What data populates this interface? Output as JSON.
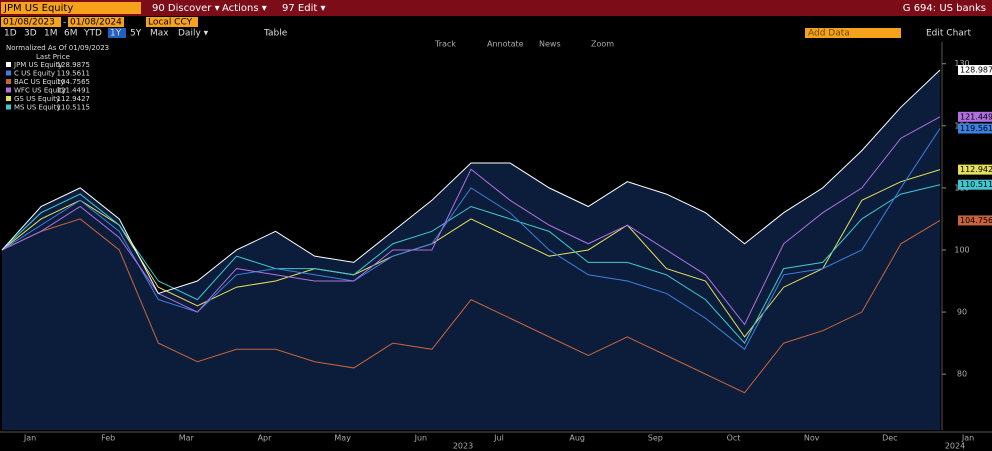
{
  "header": {
    "security": "JPM US Equity",
    "menus": [
      "90 Discover ▾",
      "Actions ▾",
      "97 Edit ▾"
    ],
    "page_title": "G 694: US banks"
  },
  "date_bar": {
    "start": "01/08/2023",
    "separator": "-",
    "end": "01/08/2024",
    "currency": "Local CCY"
  },
  "tool_bar": {
    "timeframes": [
      "1D",
      "3D",
      "1M",
      "6M",
      "YTD",
      "1Y",
      "5Y",
      "Max"
    ],
    "active": "1Y",
    "frequency": "Daily ▾",
    "table": "Table",
    "add_data": "Add Data",
    "edit_chart": "Edit Chart"
  },
  "chart_tools": [
    "Track",
    "Annotate",
    "News",
    "Zoom"
  ],
  "chart_data": {
    "type": "line",
    "legend_title": "Normalized As Of 01/09/2023",
    "legend_subtitle": "Last Price",
    "categories": [
      "Jan",
      null,
      "Feb",
      null,
      "Mar",
      null,
      "Apr",
      null,
      "May",
      null,
      "Jun",
      null,
      "Jul",
      null,
      "Aug",
      null,
      "Sep",
      null,
      "Oct",
      null,
      "Nov",
      null,
      "Dec",
      null,
      "Jan"
    ],
    "year_labels": [
      "2023",
      "2024"
    ],
    "ylim": [
      71,
      133.5
    ],
    "yticks": [
      80,
      90,
      100,
      110,
      120,
      130
    ],
    "grid": false,
    "series": [
      {
        "name": "JPM US Equity",
        "color": "#ffffff",
        "values": [
          100,
          107,
          110,
          105,
          93,
          95,
          100,
          103,
          99,
          98,
          103,
          108,
          114,
          114,
          110,
          107,
          111,
          109,
          106,
          101,
          106,
          110,
          116,
          123,
          128.9875
        ]
      },
      {
        "name": "C US Equity",
        "color": "#3d80e0",
        "values": [
          100,
          104,
          108,
          103,
          92,
          90,
          96,
          97,
          96,
          95,
          99,
          101,
          110,
          106,
          100,
          96,
          95,
          93,
          89,
          84,
          96,
          97,
          100,
          110,
          119.5611
        ]
      },
      {
        "name": "BAC US Equity",
        "color": "#c8643c",
        "values": [
          100,
          103,
          105,
          100,
          85,
          82,
          84,
          84,
          82,
          81,
          85,
          84,
          92,
          89,
          86,
          83,
          86,
          83,
          80,
          77,
          85,
          87,
          90,
          101,
          104.7565
        ]
      },
      {
        "name": "WFC US Equity",
        "color": "#b070e0",
        "values": [
          100,
          103,
          107,
          102,
          93,
          90,
          97,
          96,
          95,
          95,
          100,
          100,
          113,
          108,
          104,
          101,
          104,
          100,
          96,
          88,
          101,
          106,
          110,
          118,
          121.4491
        ]
      },
      {
        "name": "GS US Equity",
        "color": "#e6df5c",
        "values": [
          100,
          105,
          108,
          104,
          94,
          91,
          94,
          95,
          97,
          96,
          99,
          101,
          105,
          102,
          99,
          100,
          104,
          97,
          95,
          86,
          94,
          97,
          108,
          111,
          112.9427
        ]
      },
      {
        "name": "MS US Equity",
        "color": "#3fc8d2",
        "values": [
          100,
          106,
          109,
          104,
          95,
          92,
          99,
          97,
          97,
          96,
          101,
          103,
          107,
          105,
          103,
          98,
          98,
          96,
          92,
          85,
          97,
          98,
          105,
          109,
          110.5115
        ]
      }
    ]
  }
}
